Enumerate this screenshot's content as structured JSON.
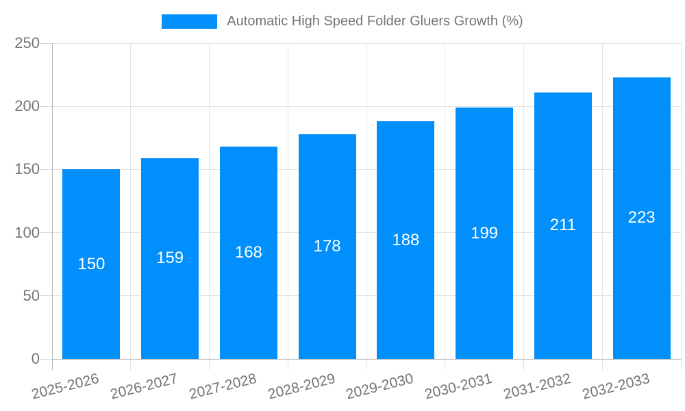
{
  "chart_data": {
    "type": "bar",
    "title": "Automatic High Speed Folder Gluers Growth (%)",
    "categories": [
      "2025-2026",
      "2026-2027",
      "2027-2028",
      "2028-2029",
      "2029-2030",
      "2030-2031",
      "2031-2032",
      "2032-2033"
    ],
    "series": [
      {
        "name": "Automatic High Speed Folder Gluers Growth (%)",
        "values": [
          150,
          159,
          168,
          178,
          188,
          199,
          211,
          223
        ]
      }
    ],
    "ylim": [
      0,
      250
    ],
    "yticks": [
      0,
      50,
      100,
      150,
      200,
      250
    ],
    "ytick_step": 50,
    "grid": true,
    "legend_position": "top",
    "xlabel": "",
    "ylabel": "",
    "colors": {
      "bar": "#008FFB",
      "value_label": "#FFFFFF",
      "axis_text": "#757575",
      "grid_line": "#E4E4E4",
      "axis_line": "#B6B6B6"
    }
  }
}
